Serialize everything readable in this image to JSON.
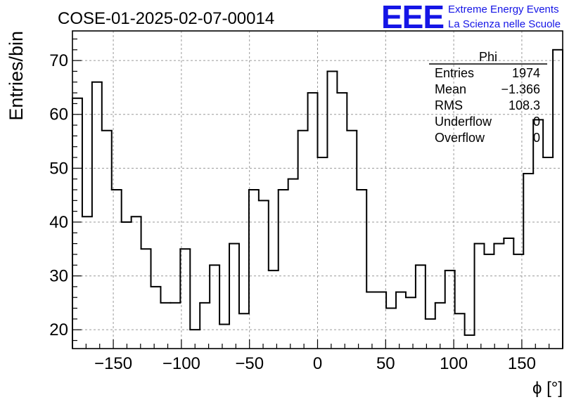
{
  "chart_data": {
    "type": "histogram",
    "title": "COSE-01-2025-02-07-00014",
    "xlabel": "ϕ [°]",
    "ylabel": "Entries/bin",
    "xlim": [
      -180,
      180
    ],
    "ylim": [
      16.5,
      75.5
    ],
    "grid": true,
    "bin_width": 7.2,
    "bin_edges_start": -180,
    "values": [
      63,
      41,
      66,
      57,
      46,
      40,
      41,
      35,
      28,
      25,
      25,
      35,
      20,
      25,
      32,
      21,
      36,
      23,
      46,
      44,
      31,
      46,
      48,
      57,
      64,
      52,
      68,
      64,
      57,
      46,
      27,
      27,
      24,
      27,
      26,
      32,
      22,
      25,
      31,
      23,
      19,
      36,
      34,
      36,
      37,
      34,
      49,
      59,
      52,
      72
    ],
    "x_ticks": [
      -150,
      -100,
      -50,
      0,
      50,
      100,
      150
    ],
    "x_tick_labels": [
      "−150",
      "−100",
      "−50",
      "0",
      "50",
      "100",
      "150"
    ],
    "y_ticks": [
      20,
      30,
      40,
      50,
      60,
      70
    ],
    "y_tick_labels": [
      "20",
      "30",
      "40",
      "50",
      "60",
      "70"
    ]
  },
  "stats_box": {
    "name": "Phi",
    "rows": [
      {
        "label": "Entries",
        "value": "1974"
      },
      {
        "label": "Mean",
        "value": "−1.366"
      },
      {
        "label": "RMS",
        "value": "108.3"
      },
      {
        "label": "Underflow",
        "value": "0"
      },
      {
        "label": "Overflow",
        "value": "0"
      }
    ]
  },
  "logo": {
    "mark": "EEE",
    "line1": "Extreme Energy Events",
    "line2": "La Scienza nelle Scuole",
    "color": "#1515e6"
  }
}
